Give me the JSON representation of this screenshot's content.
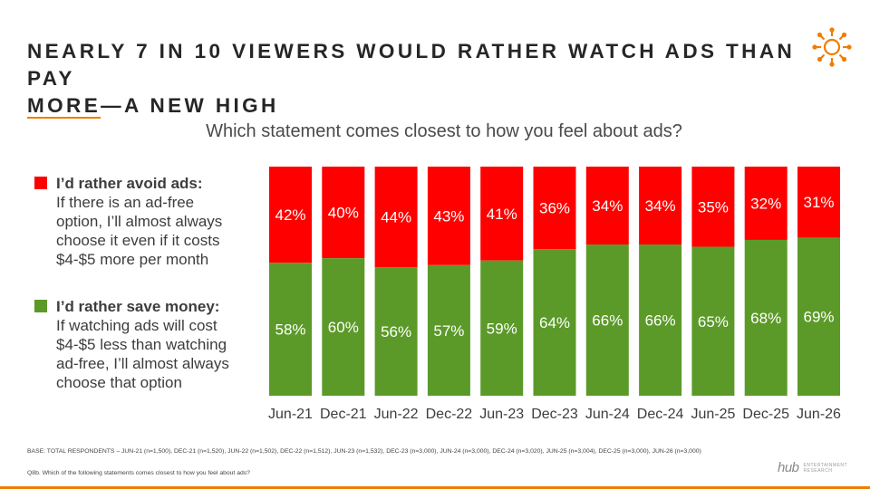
{
  "title": {
    "line1": "NEARLY 7 IN 10 VIEWERS WOULD RATHER WATCH ADS THAN PAY",
    "line2_underlined": "MORE",
    "line2_rest": "—A NEW HIGH"
  },
  "question": "Which statement comes closest to how you feel about ads?",
  "legend": {
    "avoid": {
      "head": "I’d rather avoid ads:",
      "body": "If there is an ad-free\noption, I’ll almost always\nchoose it even if it costs\n$4-$5 more per month"
    },
    "save": {
      "head": "I’d rather save money:",
      "body": "If watching ads will cost\n$4-$5 less than watching\nad-free, I’ll almost always\nchoose that option"
    }
  },
  "chart_data": {
    "type": "bar",
    "stacked": true,
    "categories": [
      "Jun-21",
      "Dec-21",
      "Jun-22",
      "Dec-22",
      "Jun-23",
      "Dec-23",
      "Jun-24",
      "Dec-24",
      "Jun-25",
      "Dec-25",
      "Jun-26"
    ],
    "series": [
      {
        "name": "I’d rather save money",
        "color": "#5b9a28",
        "values": [
          58,
          60,
          56,
          57,
          59,
          64,
          66,
          66,
          65,
          68,
          69
        ]
      },
      {
        "name": "I’d rather avoid ads",
        "color": "#ff0000",
        "values": [
          42,
          40,
          44,
          43,
          41,
          36,
          34,
          34,
          35,
          32,
          31
        ]
      }
    ],
    "value_suffix": "%",
    "ylim": [
      0,
      100
    ],
    "grid": false
  },
  "notes": {
    "base": "BASE: TOTAL RESPONDENTS – JUN-21 (n=1,500), DEC-21 (n=1,520), JUN-22 (n=1,502), DEC-22 (n=1,512), JUN-23 (n=1,532), DEC-23 (n=3,000), JUN-24 (n=3,000), DEC-24 (n=3,020), JUN-25 (n=3,004), DEC-25 (n=3,000), JUN-26 (n=3,000)",
    "question": "Q8b. Which of the following statements comes closest to how you feel about ads?"
  },
  "brand": {
    "name": "hub",
    "sub_line1": "ENTERTAINMENT",
    "sub_line2": "RESEARCH",
    "accent": "#f07d00"
  }
}
